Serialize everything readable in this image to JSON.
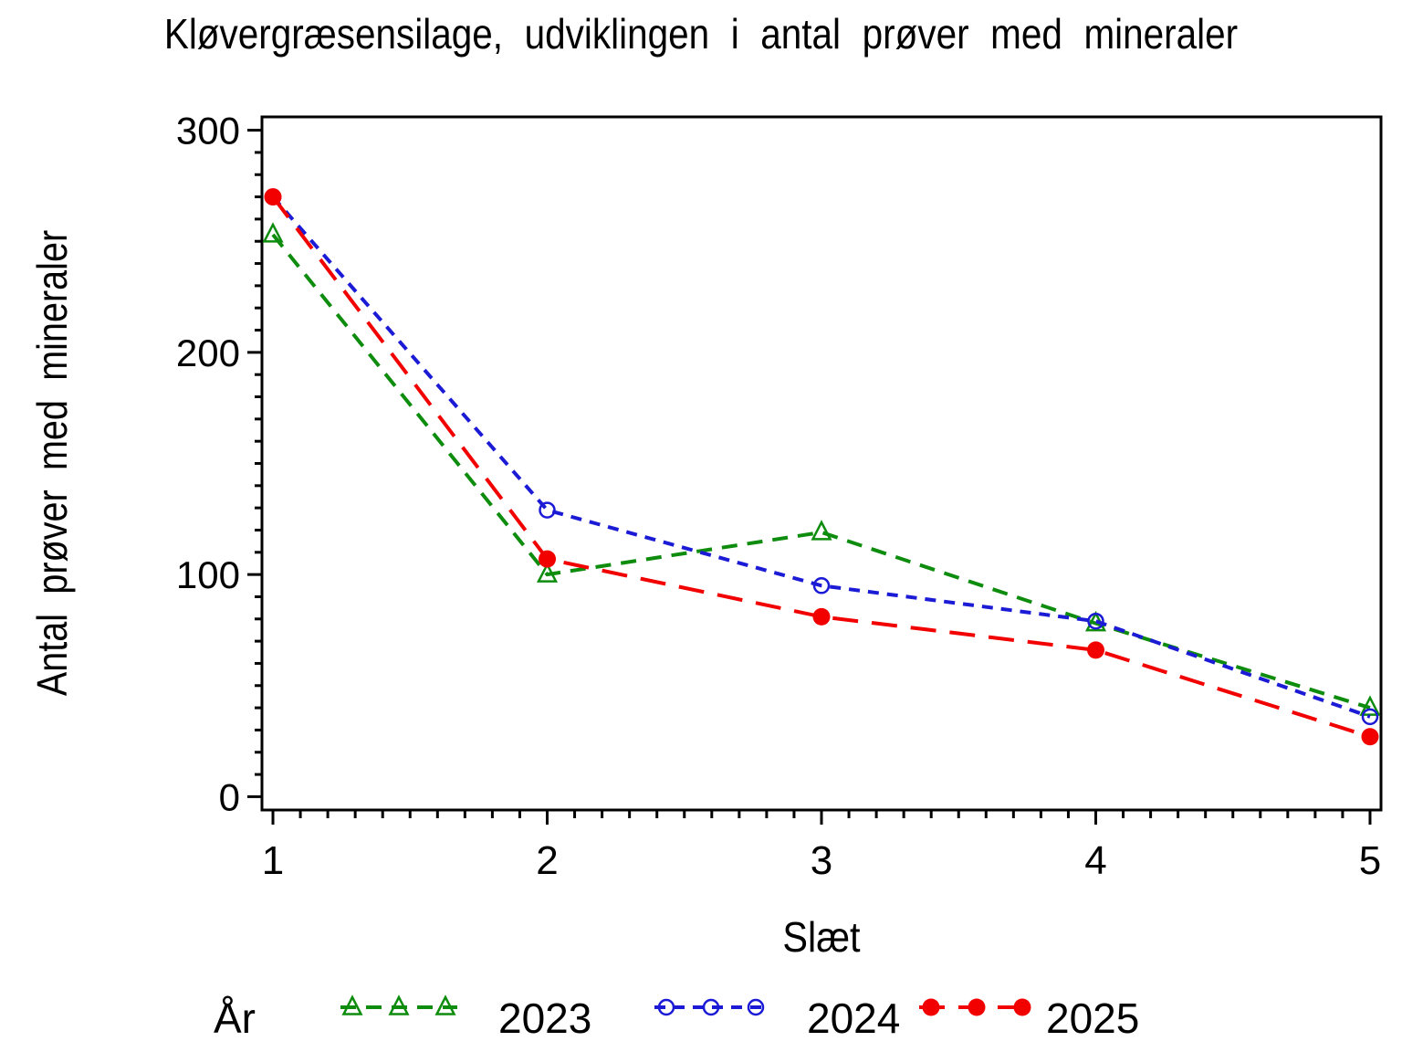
{
  "chart_data": {
    "type": "line",
    "title": "Kløvergræsensilage, udviklingen i antal prøver med mineraler",
    "xlabel": "Slæt",
    "ylabel": "Antal prøver med mineraler",
    "legend_title": "År",
    "legend_position": "bottom",
    "grid": false,
    "background": "#ffffff",
    "axis_color": "#000000",
    "x": [
      1,
      2,
      3,
      4,
      5
    ],
    "xticks": [
      1,
      2,
      3,
      4,
      5
    ],
    "yticks": [
      0,
      100,
      200,
      300
    ],
    "xlim": [
      0.96,
      5.04
    ],
    "ylim": [
      -6,
      306
    ],
    "minor_tick_step_x": 0.1,
    "minor_tick_step_y": 10,
    "series": [
      {
        "name": "2023",
        "color": "#0e8c0e",
        "marker": "triangle-open",
        "dash": [
          17,
          11
        ],
        "values": [
          253,
          100,
          119,
          78,
          40
        ]
      },
      {
        "name": "2024",
        "color": "#1b1bd6",
        "marker": "circle-open",
        "dash": [
          12,
          9
        ],
        "values": [
          270,
          129,
          95,
          79,
          36
        ]
      },
      {
        "name": "2025",
        "color": "#f20000",
        "marker": "circle-filled",
        "dash": [
          28,
          15
        ],
        "values": [
          270,
          107,
          81,
          66,
          27
        ]
      }
    ]
  }
}
